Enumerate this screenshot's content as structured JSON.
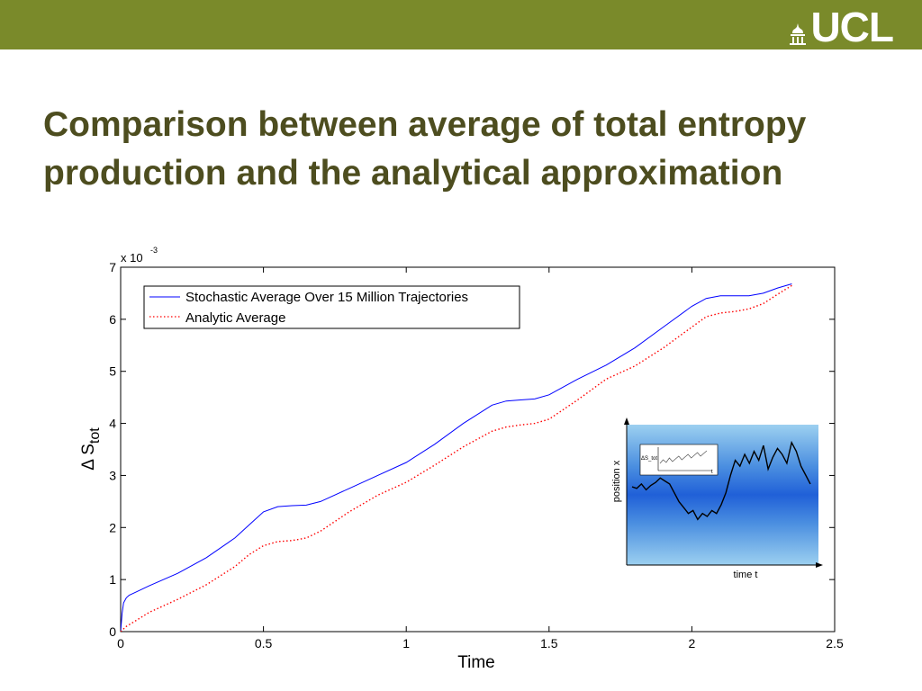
{
  "header": {
    "logo_text": "UCL",
    "banner_color": "#7a8a2a"
  },
  "slide": {
    "title": "Comparison between average of total entropy production and the analytical approximation",
    "title_color": "#4d4d1f"
  },
  "chart_data": {
    "type": "line",
    "xlabel": "Time",
    "ylabel": "Δ S_tot",
    "ylabel_main": "Δ S",
    "ylabel_sub": "tot",
    "y_multiplier_label": "x 10",
    "y_multiplier_exp": "-3",
    "xlim": [
      0,
      2.5
    ],
    "ylim": [
      0,
      7
    ],
    "xticks": [
      "0",
      "0.5",
      "1",
      "1.5",
      "2",
      "2.5"
    ],
    "yticks": [
      "0",
      "1",
      "2",
      "3",
      "4",
      "5",
      "6",
      "7"
    ],
    "grid": false,
    "legend_position": "top-left",
    "series": [
      {
        "name": "Stochastic Average Over 15 Million Trajectories",
        "color": "#0000ff",
        "style": "solid",
        "x": [
          0,
          0.005,
          0.01,
          0.02,
          0.03,
          0.05,
          0.1,
          0.2,
          0.3,
          0.4,
          0.45,
          0.5,
          0.55,
          0.6,
          0.65,
          0.7,
          0.8,
          0.9,
          1.0,
          1.1,
          1.2,
          1.3,
          1.35,
          1.4,
          1.45,
          1.5,
          1.6,
          1.7,
          1.8,
          1.9,
          2.0,
          2.05,
          2.1,
          2.15,
          2.2,
          2.25,
          2.3,
          2.35
        ],
        "y": [
          0,
          0.35,
          0.55,
          0.65,
          0.7,
          0.75,
          0.88,
          1.12,
          1.42,
          1.8,
          2.05,
          2.3,
          2.4,
          2.42,
          2.43,
          2.5,
          2.75,
          3.0,
          3.25,
          3.6,
          4.0,
          4.35,
          4.43,
          4.45,
          4.47,
          4.55,
          4.85,
          5.12,
          5.45,
          5.85,
          6.25,
          6.4,
          6.45,
          6.45,
          6.45,
          6.5,
          6.6,
          6.68
        ]
      },
      {
        "name": "Analytic Average",
        "color": "#ff0000",
        "style": "dotted",
        "x": [
          0,
          0.02,
          0.05,
          0.1,
          0.2,
          0.3,
          0.4,
          0.45,
          0.5,
          0.55,
          0.6,
          0.65,
          0.7,
          0.8,
          0.9,
          1.0,
          1.1,
          1.2,
          1.3,
          1.35,
          1.4,
          1.45,
          1.5,
          1.6,
          1.7,
          1.8,
          1.9,
          2.0,
          2.05,
          2.1,
          2.15,
          2.2,
          2.25,
          2.3,
          2.35
        ],
        "y": [
          0,
          0.1,
          0.2,
          0.37,
          0.62,
          0.9,
          1.25,
          1.48,
          1.65,
          1.73,
          1.75,
          1.8,
          1.93,
          2.3,
          2.62,
          2.87,
          3.2,
          3.55,
          3.85,
          3.93,
          3.97,
          4.0,
          4.08,
          4.45,
          4.85,
          5.1,
          5.45,
          5.85,
          6.05,
          6.12,
          6.15,
          6.2,
          6.3,
          6.48,
          6.65
        ]
      }
    ],
    "inset": {
      "xlabel": "time t",
      "ylabel": "position x",
      "mini_label": "ΔS_tot",
      "mini_axis_label": "t",
      "trajectory": [
        2.4,
        2.35,
        2.5,
        2.3,
        2.45,
        2.55,
        2.7,
        2.6,
        2.5,
        2.2,
        1.9,
        1.7,
        1.5,
        1.6,
        1.3,
        1.5,
        1.4,
        1.6,
        1.5,
        1.8,
        2.2,
        2.8,
        3.3,
        3.1,
        3.5,
        3.2,
        3.6,
        3.3,
        3.8,
        3.0,
        3.4,
        3.7,
        3.5,
        3.2,
        3.9,
        3.6,
        3.1,
        2.8,
        2.5
      ],
      "mini_trajectory": [
        0.3,
        0.5,
        0.35,
        0.6,
        0.4,
        0.55,
        0.7,
        0.5,
        0.65,
        0.8,
        0.6,
        0.75,
        0.9,
        0.7,
        0.85,
        1.0
      ]
    }
  }
}
